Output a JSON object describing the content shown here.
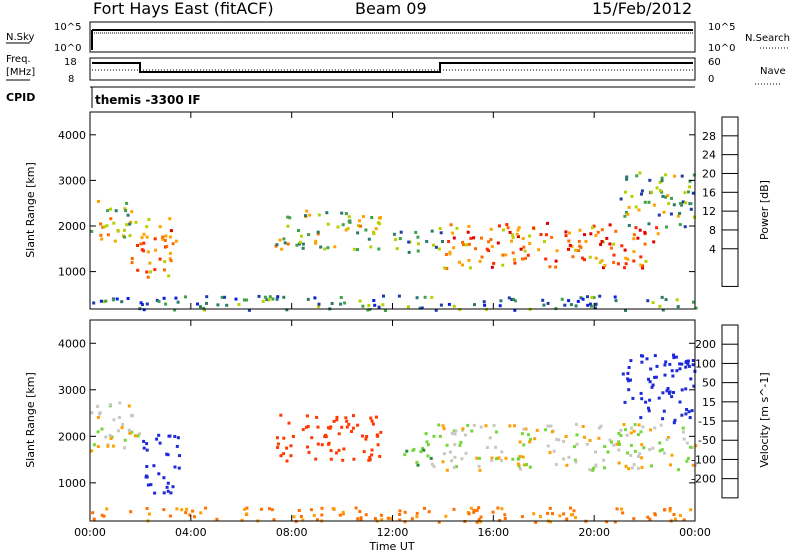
{
  "header": {
    "station": "Fort Hays East (fitACF)",
    "beam": "Beam 09",
    "date": "15/Feb/2012"
  },
  "top_panels": {
    "nsky_label": "N.Sky",
    "nsky_ticks": [
      "10^5",
      "10^0"
    ],
    "nsearch_label": "N.Search",
    "nsearch_ticks": [
      "10^5",
      "10^0"
    ],
    "freq_label_1": "Freq.",
    "freq_label_2": "[MHz]",
    "freq_ticks": [
      "18",
      "8"
    ],
    "nave_label": "Nave",
    "nave_ticks": [
      "60",
      "0"
    ],
    "cpid_label": "CPID",
    "cpid_text": "themis -3300 IF"
  },
  "chart_data": [
    {
      "type": "heatmap",
      "name": "power",
      "title": "",
      "xlabel": "Time UT",
      "ylabel": "Slant Range [km]",
      "x_ticks": [
        "00:00",
        "04:00",
        "08:00",
        "12:00",
        "16:00",
        "20:00",
        "00:00"
      ],
      "y_ticks": [
        "4000",
        "3000",
        "2000",
        "1000"
      ],
      "xlim_hours": [
        0,
        24
      ],
      "ylim_km": [
        180,
        4500
      ],
      "colorbar": {
        "label": "Power [dB]",
        "ticks": [
          "28",
          "24",
          "20",
          "16",
          "12",
          "8",
          "4"
        ],
        "range": [
          0,
          30
        ],
        "colors": [
          "#0a1ee0",
          "#1e3ca8",
          "#2a7a6a",
          "#3fa24a",
          "#b8d000",
          "#ffa200",
          "#ff6a00",
          "#ff2a00",
          "#e00000"
        ]
      },
      "regions": [
        {
          "t": [
            0.0,
            1.6
          ],
          "range": [
            1600,
            2700
          ],
          "level": 16
        },
        {
          "t": [
            1.6,
            3.5
          ],
          "range": [
            900,
            2200
          ],
          "level": 20
        },
        {
          "t": [
            7.3,
            11.5
          ],
          "range": [
            1500,
            2400
          ],
          "level": 14
        },
        {
          "t": [
            12.0,
            14.0
          ],
          "range": [
            1400,
            2000
          ],
          "level": 10
        },
        {
          "t": [
            14.0,
            22.5
          ],
          "range": [
            1100,
            2100
          ],
          "level": 22
        },
        {
          "t": [
            21.0,
            24.0
          ],
          "range": [
            2000,
            3200
          ],
          "level": 12
        },
        {
          "t": [
            0.0,
            24.0
          ],
          "range": [
            180,
            500
          ],
          "level": 8
        }
      ]
    },
    {
      "type": "heatmap",
      "name": "velocity",
      "title": "",
      "xlabel": "Time UT",
      "ylabel": "Slant Range [km]",
      "x_ticks": [
        "00:00",
        "04:00",
        "08:00",
        "12:00",
        "16:00",
        "20:00",
        "00:00"
      ],
      "y_ticks": [
        "4000",
        "3000",
        "2000",
        "1000"
      ],
      "xlim_hours": [
        0,
        24
      ],
      "ylim_km": [
        180,
        4500
      ],
      "colorbar": {
        "label": "Velocity [m s^-1]",
        "ticks": [
          "200",
          "100",
          "50",
          "15",
          "-15",
          "-50",
          "-100",
          "-200"
        ],
        "colors": [
          "#1e2ad8",
          "#1f5aa0",
          "#2a8a3a",
          "#74d63a",
          "#c8c8c0",
          "#ffa000",
          "#ff7000",
          "#ff3a00",
          "#e00000"
        ]
      },
      "regions": [
        {
          "t": [
            0.0,
            2.0
          ],
          "range": [
            1700,
            2800
          ],
          "velocity": 0
        },
        {
          "t": [
            2.0,
            3.5
          ],
          "range": [
            800,
            2100
          ],
          "velocity": 250
        },
        {
          "t": [
            7.3,
            11.6
          ],
          "range": [
            1500,
            2500
          ],
          "velocity": -150
        },
        {
          "t": [
            12.3,
            13.5
          ],
          "range": [
            1400,
            2100
          ],
          "velocity": 50
        },
        {
          "t": [
            13.5,
            24.0
          ],
          "range": [
            1300,
            2300
          ],
          "velocity": 0
        },
        {
          "t": [
            21.0,
            24.0
          ],
          "range": [
            2300,
            3800
          ],
          "velocity": 250
        },
        {
          "t": [
            0.0,
            24.0
          ],
          "range": [
            180,
            500
          ],
          "velocity": -60
        }
      ]
    }
  ]
}
